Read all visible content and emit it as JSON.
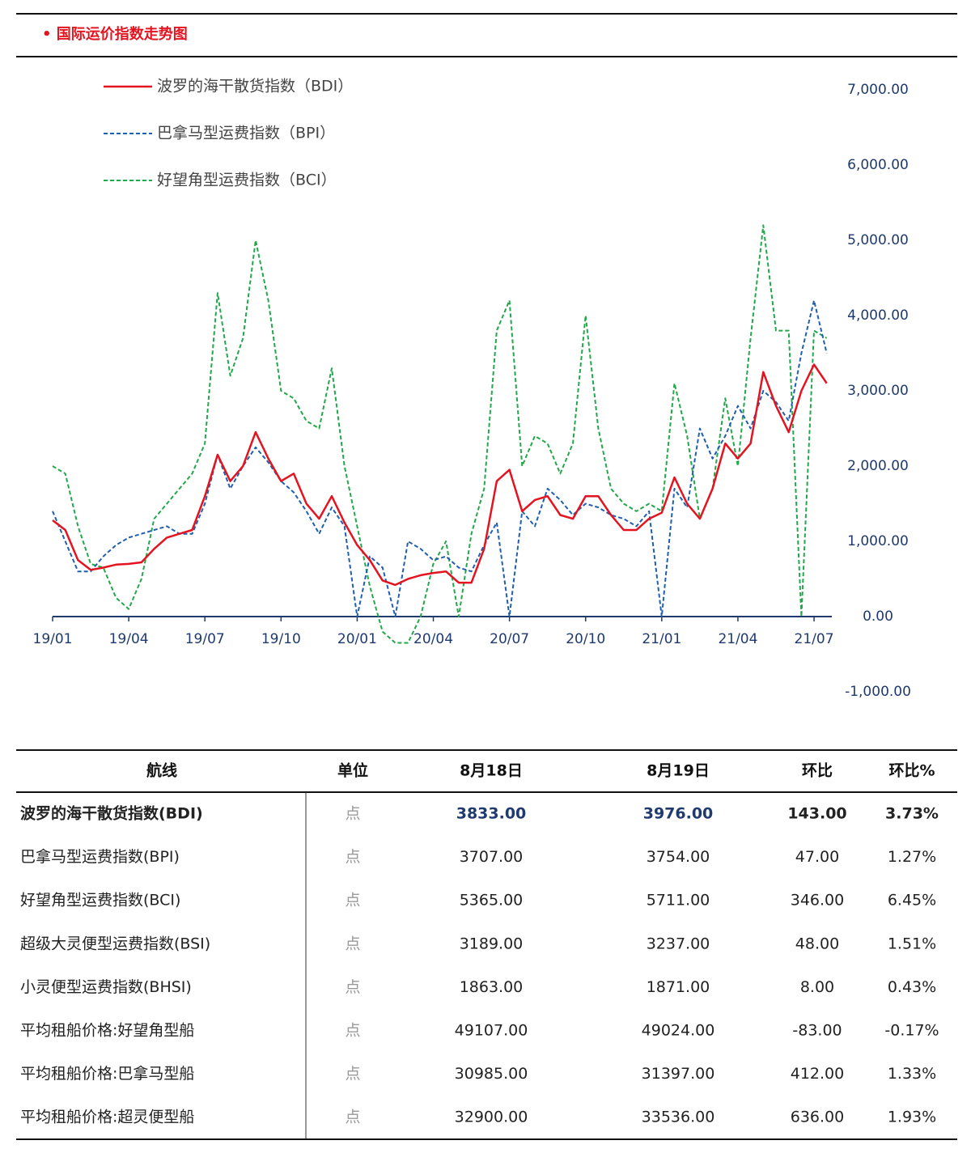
{
  "header": {
    "title": "• 国际运价指数走势图"
  },
  "chart_data": {
    "type": "line",
    "x": [
      0,
      0.5,
      1,
      1.5,
      2,
      2.5,
      3,
      3.5,
      4,
      4.5,
      5,
      5.5,
      6,
      6.5,
      7,
      7.5,
      8,
      8.5,
      9,
      9.5,
      10,
      10.5,
      11,
      11.5,
      12,
      12.5,
      13,
      13.5,
      14,
      14.5,
      15,
      15.5,
      16,
      16.5,
      17,
      17.5,
      18,
      18.5,
      19,
      19.5,
      20,
      20.5,
      21,
      21.5,
      22,
      22.5,
      23,
      23.5,
      24,
      24.5,
      25,
      25.5,
      26,
      26.5,
      27,
      27.5,
      28,
      28.5,
      29,
      29.5,
      30,
      30.5
    ],
    "series": [
      {
        "name": "波罗的海干散货指数（BDI）",
        "color": "#e3141f",
        "dash": false,
        "values": [
          1280,
          1150,
          750,
          620,
          650,
          690,
          700,
          720,
          900,
          1050,
          1100,
          1150,
          1600,
          2150,
          1800,
          2000,
          2450,
          2100,
          1800,
          1900,
          1500,
          1300,
          1600,
          1250,
          950,
          750,
          480,
          420,
          500,
          550,
          580,
          600,
          450,
          450,
          900,
          1800,
          1950,
          1400,
          1550,
          1600,
          1350,
          1300,
          1600,
          1600,
          1350,
          1150,
          1150,
          1300,
          1380,
          1850,
          1500,
          1300,
          1700,
          2300,
          2100,
          2300,
          3250,
          2800,
          2450,
          3000,
          3350,
          3100
        ]
      },
      {
        "name": "巴拿马型运费指数（BPI）",
        "color": "#1f5fae",
        "dash": true,
        "values": [
          1400,
          1000,
          600,
          600,
          800,
          950,
          1050,
          1100,
          1150,
          1200,
          1100,
          1100,
          1500,
          2150,
          1700,
          2000,
          2250,
          2050,
          1800,
          1650,
          1400,
          1100,
          1450,
          1200,
          0,
          800,
          650,
          0,
          1000,
          900,
          750,
          800,
          650,
          600,
          950,
          1250,
          0,
          1400,
          1200,
          1700,
          1550,
          1350,
          1500,
          1450,
          1350,
          1300,
          1200,
          1400,
          0,
          1700,
          1450,
          2500,
          2100,
          2400,
          2800,
          2500,
          3000,
          2850,
          2600,
          3500,
          4200,
          3500
        ]
      },
      {
        "name": "好望角型运费指数（BCI）",
        "color": "#22a84a",
        "dash": true,
        "values": [
          2000,
          1900,
          1200,
          700,
          650,
          250,
          100,
          500,
          1300,
          1500,
          1700,
          1900,
          2300,
          4300,
          3200,
          3700,
          5000,
          4200,
          3000,
          2900,
          2600,
          2500,
          3300,
          2000,
          1200,
          400,
          -200,
          -350,
          -350,
          0,
          700,
          1000,
          0,
          1100,
          1700,
          3800,
          4200,
          2000,
          2400,
          2300,
          1900,
          2300,
          4000,
          2500,
          1700,
          1500,
          1400,
          1500,
          1400,
          3100,
          2400,
          1300,
          1700,
          2900,
          2000,
          3700,
          5200,
          3800,
          3800,
          0,
          3800,
          3700
        ]
      }
    ],
    "xlim": [
      0,
      30.7
    ],
    "xticks": [
      {
        "value": 0,
        "label": "19/01"
      },
      {
        "value": 3,
        "label": "19/04"
      },
      {
        "value": 6,
        "label": "19/07"
      },
      {
        "value": 9,
        "label": "19/10"
      },
      {
        "value": 12,
        "label": "20/01"
      },
      {
        "value": 15,
        "label": "20/04"
      },
      {
        "value": 18,
        "label": "20/07"
      },
      {
        "value": 21,
        "label": "20/10"
      },
      {
        "value": 24,
        "label": "21/01"
      },
      {
        "value": 27,
        "label": "21/04"
      },
      {
        "value": 30,
        "label": "21/07"
      }
    ],
    "ylim": [
      -1000,
      7000
    ],
    "yticks": [
      {
        "value": -1000,
        "label": "-1,000.00"
      },
      {
        "value": 0,
        "label": "0.00"
      },
      {
        "value": 1000,
        "label": "1,000.00"
      },
      {
        "value": 2000,
        "label": "2,000.00"
      },
      {
        "value": 3000,
        "label": "3,000.00"
      },
      {
        "value": 4000,
        "label": "4,000.00"
      },
      {
        "value": 5000,
        "label": "5,000.00"
      },
      {
        "value": 6000,
        "label": "6,000.00"
      },
      {
        "value": 7000,
        "label": "7,000.00"
      }
    ],
    "legend": "top-left"
  },
  "table": {
    "columns": [
      "航线",
      "单位",
      "8月18日",
      "8月19日",
      "环比",
      "环比%"
    ],
    "rows": [
      [
        "波罗的海干散货指数(BDI)",
        "点",
        "3833.00",
        "3976.00",
        "143.00",
        "3.73%"
      ],
      [
        "巴拿马型运费指数(BPI)",
        "点",
        "3707.00",
        "3754.00",
        "47.00",
        "1.27%"
      ],
      [
        "好望角型运费指数(BCI)",
        "点",
        "5365.00",
        "5711.00",
        "346.00",
        "6.45%"
      ],
      [
        "超级大灵便型运费指数(BSI)",
        "点",
        "3189.00",
        "3237.00",
        "48.00",
        "1.51%"
      ],
      [
        "小灵便型运费指数(BHSI)",
        "点",
        "1863.00",
        "1871.00",
        "8.00",
        "0.43%"
      ],
      [
        "平均租船价格:好望角型船",
        "点",
        "49107.00",
        "49024.00",
        "-83.00",
        "-0.17%"
      ],
      [
        "平均租船价格:巴拿马型船",
        "点",
        "30985.00",
        "31397.00",
        "412.00",
        "1.33%"
      ],
      [
        "平均租船价格:超灵便型船",
        "点",
        "32900.00",
        "33536.00",
        "636.00",
        "1.93%"
      ]
    ]
  }
}
